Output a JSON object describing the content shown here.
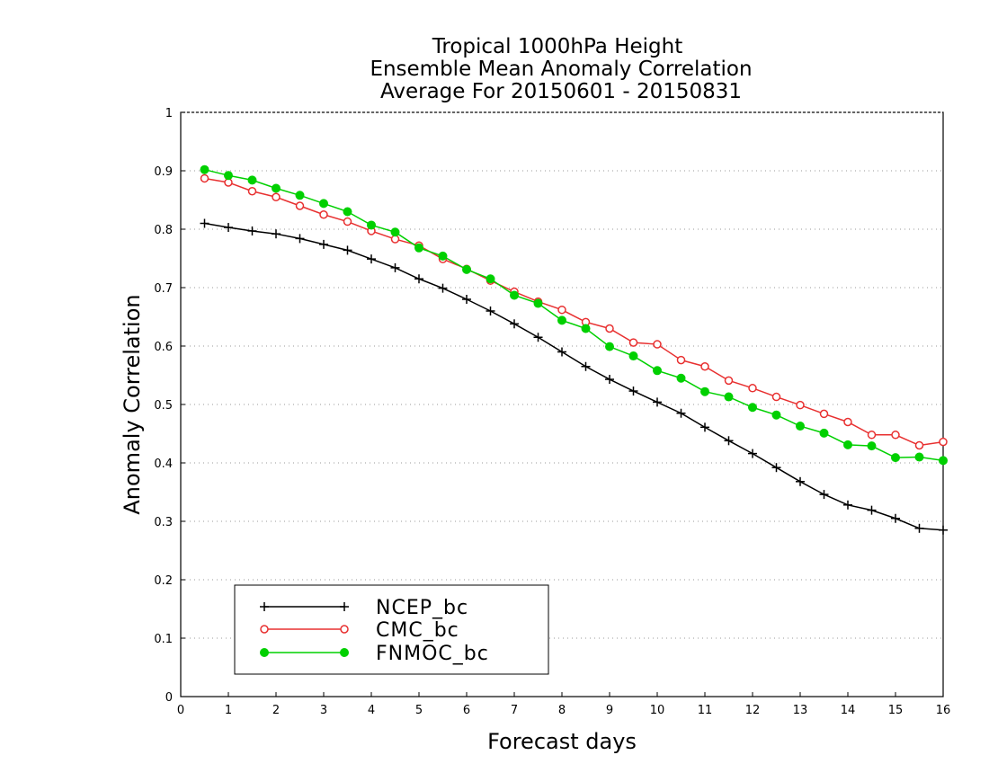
{
  "chart_data": {
    "type": "line",
    "title_lines": [
      "Tropical 1000hPa Height",
      "Ensemble Mean Anomaly Correlation",
      "Average For 20150601 - 20150831"
    ],
    "xlabel": "Forecast days",
    "ylabel": "Anomaly Correlation",
    "xlim": [
      0,
      16
    ],
    "ylim": [
      0,
      1
    ],
    "x_ticks": [
      "0",
      "1",
      "2",
      "3",
      "4",
      "5",
      "6",
      "7",
      "8",
      "9",
      "10",
      "11",
      "12",
      "13",
      "14",
      "15",
      "16"
    ],
    "y_ticks": [
      "0",
      "0.1",
      "0.2",
      "0.3",
      "0.4",
      "0.5",
      "0.6",
      "0.7",
      "0.8",
      "0.9",
      "1"
    ],
    "grid": "horizontal dotted",
    "legend_position": "bottom-left",
    "x": [
      0.5,
      1,
      1.5,
      2,
      2.5,
      3,
      3.5,
      4,
      4.5,
      5,
      5.5,
      6,
      6.5,
      7,
      7.5,
      8,
      8.5,
      9,
      9.5,
      10,
      10.5,
      11,
      11.5,
      12,
      12.5,
      13,
      13.5,
      14,
      14.5,
      15,
      15.5,
      16
    ],
    "series": [
      {
        "name": "NCEP_bc",
        "color": "#000000",
        "marker": "plus",
        "values": [
          0.81,
          0.803,
          0.797,
          0.792,
          0.784,
          0.774,
          0.764,
          0.749,
          0.734,
          0.715,
          0.699,
          0.68,
          0.66,
          0.638,
          0.615,
          0.59,
          0.565,
          0.543,
          0.523,
          0.504,
          0.485,
          0.461,
          0.438,
          0.416,
          0.392,
          0.368,
          0.346,
          0.328,
          0.319,
          0.305,
          0.288,
          0.285
        ]
      },
      {
        "name": "CMC_bc",
        "color": "#e83030",
        "marker": "open-circle",
        "values": [
          0.887,
          0.88,
          0.865,
          0.855,
          0.84,
          0.825,
          0.813,
          0.797,
          0.783,
          0.772,
          0.749,
          0.732,
          0.712,
          0.693,
          0.676,
          0.662,
          0.641,
          0.63,
          0.606,
          0.603,
          0.576,
          0.565,
          0.541,
          0.528,
          0.513,
          0.499,
          0.484,
          0.47,
          0.448,
          0.448,
          0.43,
          0.436
        ]
      },
      {
        "name": "FNMOC_bc",
        "color": "#00d000",
        "marker": "filled-circle",
        "values": [
          0.902,
          0.892,
          0.884,
          0.87,
          0.858,
          0.844,
          0.83,
          0.807,
          0.795,
          0.768,
          0.754,
          0.731,
          0.715,
          0.687,
          0.673,
          0.644,
          0.63,
          0.599,
          0.583,
          0.558,
          0.545,
          0.522,
          0.513,
          0.495,
          0.482,
          0.463,
          0.451,
          0.431,
          0.429,
          0.409,
          0.41,
          0.404
        ]
      }
    ]
  }
}
